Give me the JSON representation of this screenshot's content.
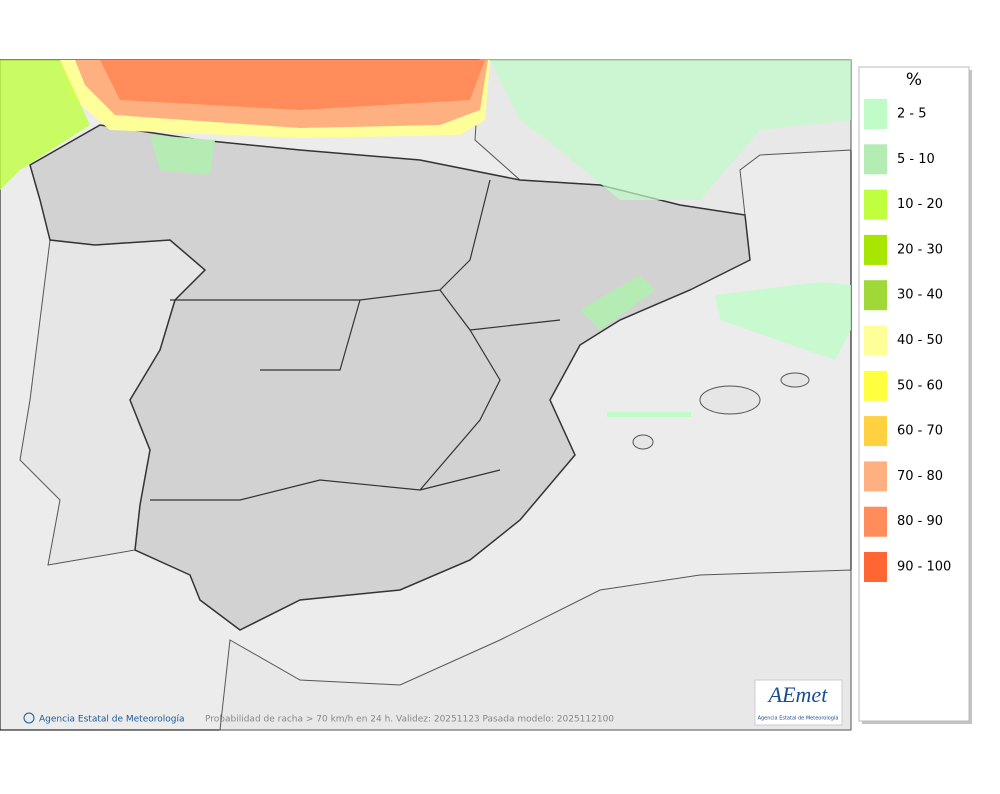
{
  "legend": {
    "title": "%",
    "items": [
      {
        "label": "2 - 5",
        "color": "#c0fcc8"
      },
      {
        "label": "5 - 10",
        "color": "#b4ecb4"
      },
      {
        "label": "10 - 20",
        "color": "#c0ff40"
      },
      {
        "label": "20 - 30",
        "color": "#a6e600"
      },
      {
        "label": "30 - 40",
        "color": "#a0d838"
      },
      {
        "label": "40 - 50",
        "color": "#ffff99"
      },
      {
        "label": "50 - 60",
        "color": "#ffff40"
      },
      {
        "label": "60 - 70",
        "color": "#ffd040"
      },
      {
        "label": "70 - 80",
        "color": "#ffb080"
      },
      {
        "label": "80 - 90",
        "color": "#ff8c5a"
      },
      {
        "label": "90 - 100",
        "color": "#ff6633"
      }
    ]
  },
  "footer": {
    "credit": "Agencia Estatal de Meteorología",
    "caption": "Probabilidad de racha > 70 km/h en 24 h. Validez: 20251123 Pasada modelo: 2025112100"
  },
  "logo": {
    "name": "AEmet",
    "subtitle": "Agencia Estatal de Meteorología"
  }
}
